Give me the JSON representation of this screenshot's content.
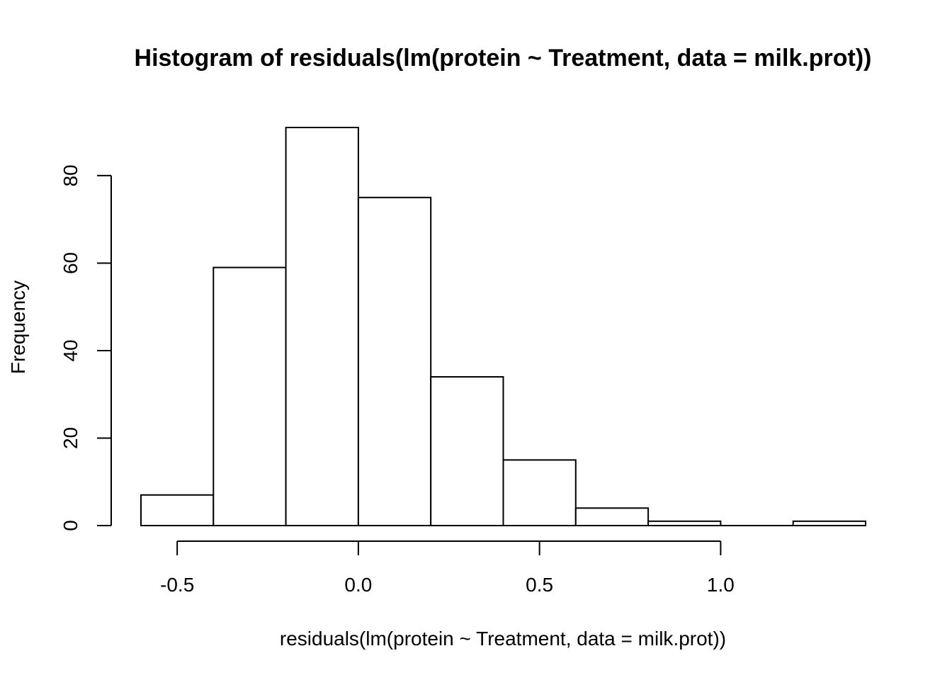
{
  "chart_data": {
    "type": "bar",
    "subtype": "histogram",
    "title": "Histogram of residuals(lm(protein ~ Treatment, data = milk.prot))",
    "xlabel": "residuals(lm(protein ~ Treatment, data = milk.prot))",
    "ylabel": "Frequency",
    "bins": [
      {
        "from": -0.6,
        "to": -0.4,
        "count": 7
      },
      {
        "from": -0.4,
        "to": -0.2,
        "count": 59
      },
      {
        "from": -0.2,
        "to": 0.0,
        "count": 91
      },
      {
        "from": 0.0,
        "to": 0.2,
        "count": 75
      },
      {
        "from": 0.2,
        "to": 0.4,
        "count": 34
      },
      {
        "from": 0.4,
        "to": 0.6,
        "count": 15
      },
      {
        "from": 0.6,
        "to": 0.8,
        "count": 4
      },
      {
        "from": 0.8,
        "to": 1.0,
        "count": 1
      },
      {
        "from": 1.0,
        "to": 1.2,
        "count": 0
      },
      {
        "from": 1.2,
        "to": 1.4,
        "count": 1
      }
    ],
    "xticks": [
      -0.5,
      0.0,
      0.5,
      1.0
    ],
    "xtick_labels": [
      "-0.5",
      "0.0",
      "0.5",
      "1.0"
    ],
    "yticks": [
      0,
      20,
      40,
      60,
      80
    ],
    "ytick_labels": [
      "0",
      "20",
      "40",
      "60",
      "80"
    ],
    "xlim": [
      -0.6,
      1.4
    ],
    "ylim": [
      0,
      91
    ],
    "grid": false,
    "legend": "none"
  }
}
